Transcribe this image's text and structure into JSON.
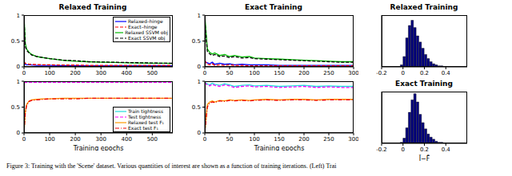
{
  "chart_data": [
    {
      "type": "line",
      "title": "Relaxed Training",
      "x": [
        0,
        5,
        10,
        20,
        30,
        50,
        75,
        100,
        150,
        200,
        250,
        300,
        350,
        400,
        450,
        500,
        550,
        580
      ],
      "xlim": [
        0,
        580
      ],
      "xticks": [
        0,
        100,
        200,
        300,
        400,
        500
      ],
      "ylim": [
        0,
        1
      ],
      "yticks": [
        0,
        0.5,
        1
      ],
      "legend": "upper right",
      "series": [
        {
          "name": "Relaxed–hinge",
          "color": "#0000ff",
          "line_style": "solid",
          "values": [
            0.08,
            0.05,
            0.04,
            0.04,
            0.035,
            0.03,
            0.03,
            0.03,
            0.025,
            0.025,
            0.02,
            0.02,
            0.02,
            0.02,
            0.02,
            0.02,
            0.02,
            0.02
          ]
        },
        {
          "name": "Exact–hinge",
          "color": "#ff0000",
          "line_style": "dashed",
          "values": [
            0.1,
            0.07,
            0.06,
            0.05,
            0.05,
            0.045,
            0.04,
            0.04,
            0.035,
            0.035,
            0.03,
            0.03,
            0.03,
            0.03,
            0.03,
            0.03,
            0.03,
            0.03
          ]
        },
        {
          "name": "Relaxed SSVM obj",
          "color": "#00bb00",
          "line_style": "solid",
          "values": [
            1,
            0.45,
            0.35,
            0.28,
            0.24,
            0.2,
            0.18,
            0.16,
            0.13,
            0.11,
            0.1,
            0.09,
            0.085,
            0.08,
            0.075,
            0.07,
            0.07,
            0.065
          ]
        },
        {
          "name": "Exact SSVM obj",
          "color": "#000000",
          "line_style": "dashed",
          "values": [
            0.95,
            0.4,
            0.32,
            0.27,
            0.23,
            0.2,
            0.18,
            0.16,
            0.13,
            0.12,
            0.1,
            0.095,
            0.09,
            0.085,
            0.08,
            0.075,
            0.07,
            0.07
          ]
        }
      ]
    },
    {
      "type": "line",
      "x": [
        0,
        5,
        10,
        20,
        30,
        50,
        75,
        100,
        150,
        200,
        250,
        300,
        350,
        400,
        450,
        500,
        550,
        580
      ],
      "xlim": [
        0,
        580
      ],
      "xticks": [
        0,
        100,
        200,
        300,
        400,
        500
      ],
      "ylim": [
        0,
        1
      ],
      "yticks": [
        0,
        0.5,
        1
      ],
      "x_label": "Training epochs",
      "legend": "lower right",
      "series": [
        {
          "name": "Train tightness",
          "color": "#22dddd",
          "line_style": "solid",
          "values": [
            0.99,
            0.99,
            0.99,
            0.99,
            0.99,
            0.99,
            0.99,
            0.99,
            0.99,
            0.99,
            0.99,
            0.99,
            0.99,
            0.99,
            0.99,
            0.99,
            0.99,
            0.99
          ]
        },
        {
          "name": "Test tightness",
          "color": "#ff00ff",
          "line_style": "dashed",
          "values": [
            0.98,
            0.98,
            0.98,
            0.98,
            0.98,
            0.98,
            0.98,
            0.98,
            0.98,
            0.98,
            0.98,
            0.98,
            0.98,
            0.98,
            0.98,
            0.98,
            0.98,
            0.98
          ]
        },
        {
          "name": "Relaxed test F₁",
          "color": "#ff9900",
          "line_style": "solid",
          "values": [
            0,
            0.4,
            0.55,
            0.62,
            0.64,
            0.65,
            0.66,
            0.66,
            0.67,
            0.67,
            0.67,
            0.67,
            0.67,
            0.67,
            0.67,
            0.67,
            0.67,
            0.67
          ]
        },
        {
          "name": "Exact test F₁",
          "color": "#ee0000",
          "line_style": "dashdot",
          "values": [
            0,
            0.38,
            0.53,
            0.61,
            0.63,
            0.64,
            0.65,
            0.66,
            0.66,
            0.66,
            0.67,
            0.67,
            0.67,
            0.67,
            0.67,
            0.67,
            0.67,
            0.67
          ]
        }
      ]
    },
    {
      "type": "line",
      "title": "Exact Training",
      "x": [
        0,
        5,
        10,
        15,
        20,
        30,
        40,
        50,
        60,
        75,
        90,
        100,
        125,
        150,
        175,
        200,
        225,
        250,
        275,
        300
      ],
      "xlim": [
        0,
        300
      ],
      "xticks": [
        0,
        50,
        100,
        150,
        200,
        250,
        300
      ],
      "ylim": [
        0,
        1
      ],
      "yticks": [
        0,
        0.5,
        1
      ],
      "series": [
        {
          "name": "Relaxed–hinge",
          "color": "#0000ff",
          "line_style": "solid",
          "values": [
            0.1,
            0.08,
            0.06,
            0.09,
            0.05,
            0.07,
            0.05,
            0.06,
            0.04,
            0.05,
            0.04,
            0.04,
            0.04,
            0.03,
            0.03,
            0.03,
            0.03,
            0.03,
            0.03,
            0.03
          ]
        },
        {
          "name": "Exact–hinge",
          "color": "#ff0000",
          "line_style": "dashed",
          "values": [
            0.12,
            0.05,
            0.04,
            0.06,
            0.03,
            0.04,
            0.03,
            0.04,
            0.03,
            0.03,
            0.02,
            0.02,
            0.02,
            0.02,
            0.02,
            0.02,
            0.02,
            0.02,
            0.02,
            0.02
          ]
        },
        {
          "name": "Relaxed SSVM obj",
          "color": "#00bb00",
          "line_style": "solid",
          "values": [
            1,
            0.35,
            0.28,
            0.25,
            0.27,
            0.22,
            0.24,
            0.2,
            0.22,
            0.19,
            0.2,
            0.17,
            0.16,
            0.15,
            0.14,
            0.13,
            0.12,
            0.11,
            0.1,
            0.1
          ]
        },
        {
          "name": "Exact SSVM obj",
          "color": "#000000",
          "line_style": "dashed",
          "values": [
            0.9,
            0.3,
            0.25,
            0.22,
            0.24,
            0.2,
            0.21,
            0.18,
            0.2,
            0.17,
            0.18,
            0.16,
            0.15,
            0.14,
            0.13,
            0.12,
            0.11,
            0.1,
            0.09,
            0.09
          ]
        }
      ]
    },
    {
      "type": "line",
      "x": [
        0,
        5,
        10,
        15,
        20,
        30,
        40,
        50,
        60,
        75,
        90,
        100,
        125,
        150,
        175,
        200,
        225,
        250,
        275,
        300
      ],
      "xlim": [
        0,
        300
      ],
      "xticks": [
        0,
        50,
        100,
        150,
        200,
        250,
        300
      ],
      "ylim": [
        0,
        1
      ],
      "yticks": [
        0,
        0.5,
        1
      ],
      "x_label": "Training epochs",
      "series": [
        {
          "name": "Train tightness",
          "color": "#22dddd",
          "line_style": "solid",
          "values": [
            0.98,
            0.95,
            0.93,
            0.96,
            0.94,
            0.92,
            0.95,
            0.93,
            0.9,
            0.92,
            0.93,
            0.91,
            0.92,
            0.9,
            0.91,
            0.92,
            0.9,
            0.91,
            0.9,
            0.9
          ]
        },
        {
          "name": "Test tightness",
          "color": "#ff00ff",
          "line_style": "dashed",
          "values": [
            0.97,
            0.93,
            0.91,
            0.94,
            0.92,
            0.9,
            0.93,
            0.91,
            0.88,
            0.9,
            0.91,
            0.89,
            0.9,
            0.88,
            0.89,
            0.9,
            0.88,
            0.89,
            0.88,
            0.88
          ]
        },
        {
          "name": "Relaxed test F₁",
          "color": "#ff9900",
          "line_style": "solid",
          "values": [
            0,
            0.55,
            0.6,
            0.62,
            0.6,
            0.63,
            0.62,
            0.64,
            0.63,
            0.64,
            0.63,
            0.64,
            0.65,
            0.64,
            0.65,
            0.65,
            0.64,
            0.65,
            0.65,
            0.65
          ]
        },
        {
          "name": "Exact test F₁",
          "color": "#ee0000",
          "line_style": "dashdot",
          "values": [
            0,
            0.5,
            0.58,
            0.6,
            0.59,
            0.62,
            0.61,
            0.63,
            0.62,
            0.63,
            0.62,
            0.63,
            0.64,
            0.63,
            0.64,
            0.64,
            0.63,
            0.64,
            0.64,
            0.64
          ]
        }
      ]
    },
    {
      "type": "histogram",
      "title": "Relaxed Training",
      "bins": [
        -0.025,
        0,
        0.025,
        0.05,
        0.075,
        0.1,
        0.125,
        0.15,
        0.175,
        0.2,
        0.225,
        0.25,
        0.275,
        0.3,
        0.325,
        0.35,
        0.375,
        0.4
      ],
      "counts": [
        2,
        10,
        28,
        40,
        45,
        38,
        30,
        24,
        18,
        12,
        8,
        5,
        3,
        2,
        1,
        1,
        0
      ],
      "color": "#000080",
      "xlim": [
        -0.2,
        0.6
      ],
      "xticks": [
        -0.2,
        0,
        0.2,
        0.4
      ],
      "ylim": [
        0,
        50
      ],
      "tick_labels": "x"
    },
    {
      "type": "histogram",
      "title": "Exact Training",
      "bins": [
        -0.025,
        0,
        0.025,
        0.05,
        0.075,
        0.1,
        0.125,
        0.15,
        0.175,
        0.2,
        0.225,
        0.25,
        0.275,
        0.3,
        0.325,
        0.35,
        0.375,
        0.4
      ],
      "counts": [
        1,
        5,
        15,
        30,
        42,
        48,
        40,
        28,
        20,
        14,
        9,
        6,
        4,
        2,
        1,
        1,
        0
      ],
      "color": "#000080",
      "xlim": [
        -0.2,
        0.6
      ],
      "xticks": [
        -0.2,
        0,
        0.2,
        0.4
      ],
      "ylim": [
        0,
        50
      ],
      "tick_labels": "x",
      "x_label": "Ĩ−F̃"
    }
  ],
  "caption": "Figure 3: Training with the 'Scene' dataset. Various quantities of interest are shown as a function of training iterations. (Left) Trai"
}
